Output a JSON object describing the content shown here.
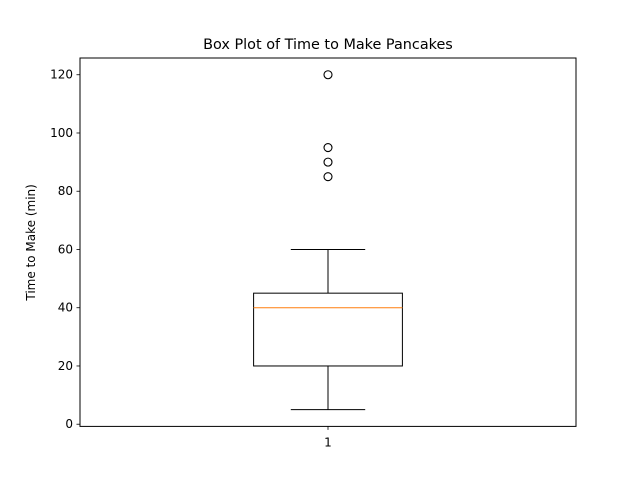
{
  "chart_data": {
    "type": "boxplot",
    "title": "Box Plot of Time to Make Pancakes",
    "xlabel": "",
    "ylabel": "Time to Make (min)",
    "ylim": [
      -0.75,
      125.75
    ],
    "yticks": [
      0,
      20,
      40,
      60,
      80,
      100,
      120
    ],
    "xticks": [
      "1"
    ],
    "grid": false,
    "boxes": [
      {
        "category": "1",
        "whisker_low": 5,
        "q1": 20,
        "median": 40,
        "q3": 45,
        "whisker_high": 60,
        "outliers": [
          85,
          90,
          95,
          120
        ]
      }
    ],
    "colors": {
      "box": "#000000",
      "median": "#ff7f0e",
      "outlier_edge": "#000000"
    }
  }
}
